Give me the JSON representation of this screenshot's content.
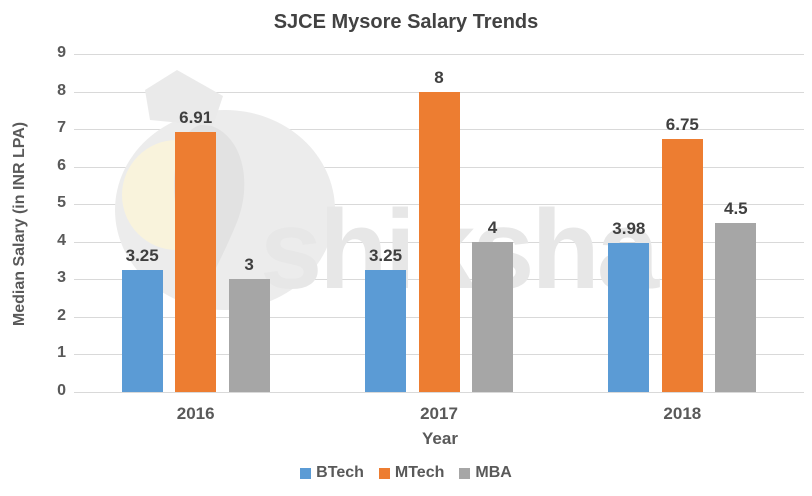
{
  "watermark": {
    "text": "shiksha",
    "logo": "graduation-cap"
  },
  "chart_data": {
    "type": "bar",
    "title": "SJCE Mysore Salary Trends",
    "categories": [
      "2016",
      "2017",
      "2018"
    ],
    "series": [
      {
        "name": "BTech",
        "color": "#5B9BD5",
        "values": [
          3.25,
          3.25,
          3.98
        ]
      },
      {
        "name": "MTech",
        "color": "#ED7D31",
        "values": [
          6.91,
          8,
          6.75
        ]
      },
      {
        "name": "MBA",
        "color": "#A6A6A6",
        "values": [
          3,
          4,
          4.5
        ]
      }
    ],
    "xlabel": "Year",
    "ylabel": "Median Salary (in INR LPA)",
    "ylim": [
      0,
      9
    ],
    "yticks": [
      0,
      1,
      2,
      3,
      4,
      5,
      6,
      7,
      8,
      9
    ],
    "grid": true,
    "legend_position": "bottom",
    "data_labels": true,
    "styles": {
      "gridline_color": "#D9D9D9",
      "axis_text_color": "#595959",
      "data_label_color": "#3F3F3F",
      "title_color": "#424242",
      "background": "#FFFFFF",
      "watermark_color": "#E7E7E7"
    }
  }
}
